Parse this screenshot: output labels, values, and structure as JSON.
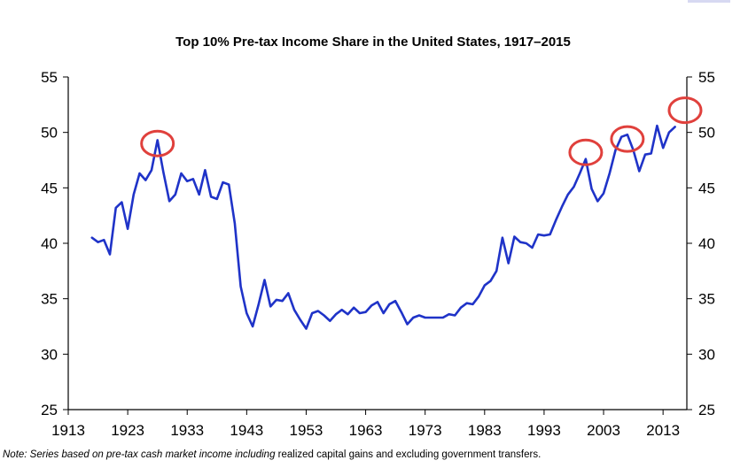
{
  "chart_data": {
    "type": "line",
    "title": "Top 10% Pre-tax Income Share in the United States, 1917–2015",
    "xlabel": "",
    "ylabel": "",
    "xlim": [
      1913,
      2017
    ],
    "ylim": [
      25,
      55
    ],
    "x_ticks": [
      "1913",
      "1923",
      "1933",
      "1943",
      "1953",
      "1963",
      "1973",
      "1983",
      "1993",
      "2003",
      "2013"
    ],
    "y_ticks": [
      "25",
      "30",
      "35",
      "40",
      "45",
      "50",
      "55"
    ],
    "line_color": "#1f33c8",
    "highlight_color": "#e0403c",
    "grid": false,
    "series": [
      {
        "x": [
          1917,
          1918,
          1919,
          1920,
          1921,
          1922,
          1923,
          1924,
          1925,
          1926,
          1927,
          1928,
          1929,
          1930,
          1931,
          1932,
          1933,
          1934,
          1935,
          1936,
          1937,
          1938,
          1939,
          1940,
          1941,
          1942,
          1943,
          1944,
          1945,
          1946,
          1947,
          1948,
          1949,
          1950,
          1951,
          1952,
          1953,
          1954,
          1955,
          1956,
          1957,
          1958,
          1959,
          1960,
          1961,
          1962,
          1963,
          1964,
          1965,
          1966,
          1967,
          1968,
          1969,
          1970,
          1971,
          1972,
          1973,
          1974,
          1975,
          1976,
          1977,
          1978,
          1979,
          1980,
          1981,
          1982,
          1983,
          1984,
          1985,
          1986,
          1987,
          1988,
          1989,
          1990,
          1991,
          1992,
          1993,
          1994,
          1995,
          1996,
          1997,
          1998,
          1999,
          2000,
          2001,
          2002,
          2003,
          2004,
          2005,
          2006,
          2007,
          2008,
          2009,
          2010,
          2011,
          2012,
          2013,
          2014,
          2015
        ],
        "values": [
          40.5,
          40.1,
          40.3,
          39.0,
          43.2,
          43.7,
          41.3,
          44.4,
          46.3,
          45.7,
          46.6,
          49.3,
          46.4,
          43.8,
          44.4,
          46.3,
          45.6,
          45.8,
          44.4,
          46.6,
          44.2,
          44.0,
          45.5,
          45.3,
          41.8,
          36.1,
          33.7,
          32.5,
          34.5,
          36.7,
          34.3,
          34.9,
          34.8,
          35.5,
          34.0,
          33.1,
          32.3,
          33.7,
          33.9,
          33.5,
          33.0,
          33.6,
          34.0,
          33.6,
          34.2,
          33.7,
          33.8,
          34.4,
          34.7,
          33.7,
          34.5,
          34.8,
          33.8,
          32.7,
          33.3,
          33.5,
          33.3,
          33.3,
          33.3,
          33.3,
          33.6,
          33.5,
          34.2,
          34.6,
          34.5,
          35.2,
          36.2,
          36.6,
          37.5,
          40.5,
          38.2,
          40.6,
          40.1,
          40.0,
          39.6,
          40.8,
          40.7,
          40.8,
          42.1,
          43.3,
          44.4,
          45.1,
          46.3,
          47.6,
          44.9,
          43.8,
          44.5,
          46.3,
          48.4,
          49.6,
          49.8,
          48.4,
          46.5,
          48.0,
          48.1,
          50.6,
          48.6,
          50.0,
          50.5
        ]
      }
    ],
    "highlights": [
      {
        "x": 1928,
        "y": 49.0
      },
      {
        "x": 2000,
        "y": 48.2
      },
      {
        "x": 2007,
        "y": 49.4
      },
      {
        "x": 2016.7,
        "y": 52.0
      }
    ],
    "note": {
      "lead": "Note: Series based on pre-tax cash market income including",
      "rest": " realized capital gains and excluding government transfers."
    }
  }
}
